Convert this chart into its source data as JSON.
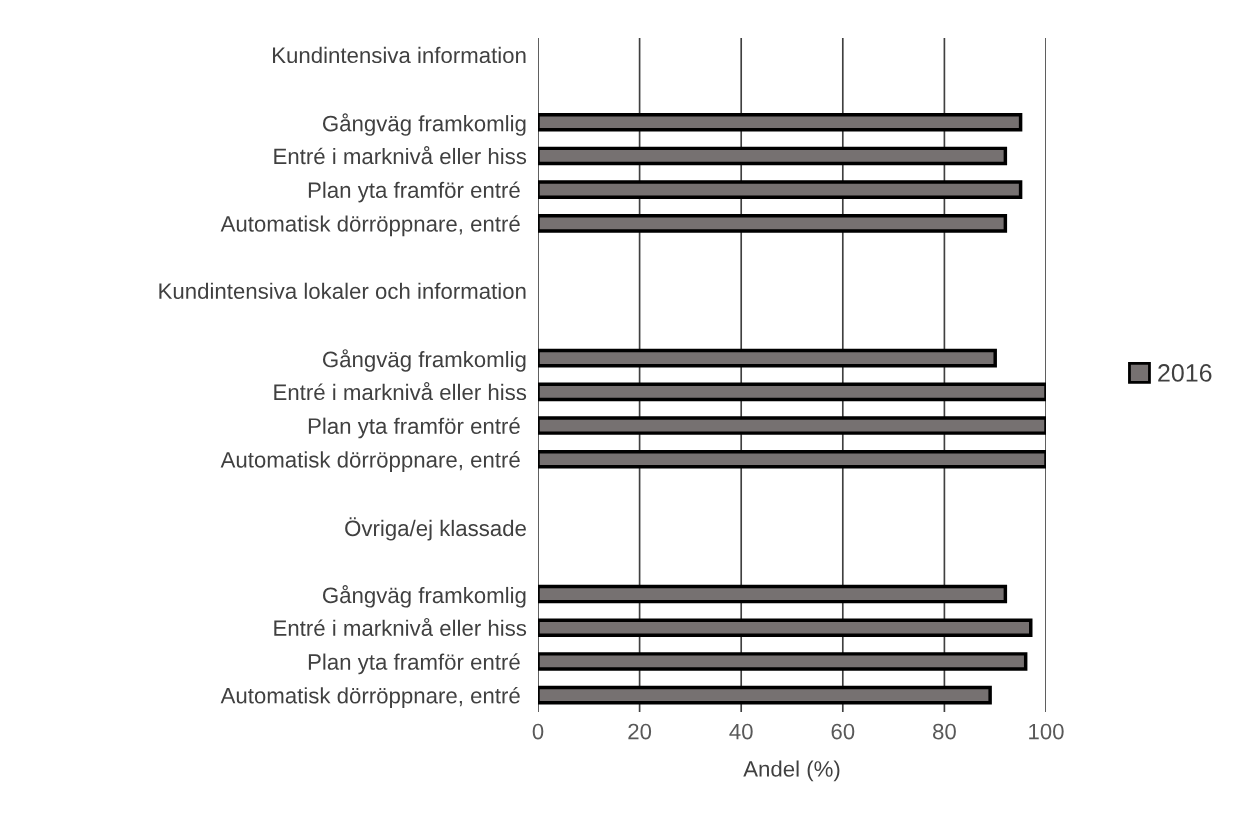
{
  "chart_data": {
    "type": "bar",
    "orientation": "horizontal",
    "xlabel": "Andel (%)",
    "categories": [
      "Kundintensiva information",
      null,
      "Gångväg framkomlig",
      "Entré i marknivå eller hiss",
      "Plan yta framför entré ",
      "Automatisk dörröppnare, entré ",
      null,
      "Kundintensiva lokaler och information",
      null,
      "Gångväg framkomlig",
      "Entré i marknivå eller hiss",
      "Plan yta framför entré ",
      "Automatisk dörröppnare, entré ",
      null,
      "Övriga/ej klassade",
      null,
      "Gångväg framkomlig",
      "Entré i marknivå eller hiss",
      "Plan yta framför entré ",
      "Automatisk dörröppnare, entré "
    ],
    "series": [
      {
        "name": "2016",
        "color": "#767171",
        "values": [
          null,
          null,
          95,
          92,
          95,
          92,
          null,
          null,
          null,
          90,
          100,
          100,
          100,
          null,
          null,
          null,
          92,
          97,
          96,
          89
        ]
      }
    ],
    "xlim": [
      0,
      100
    ],
    "xticks": [
      0,
      20,
      40,
      60,
      80,
      100
    ],
    "grid": "x",
    "legend": "right"
  }
}
